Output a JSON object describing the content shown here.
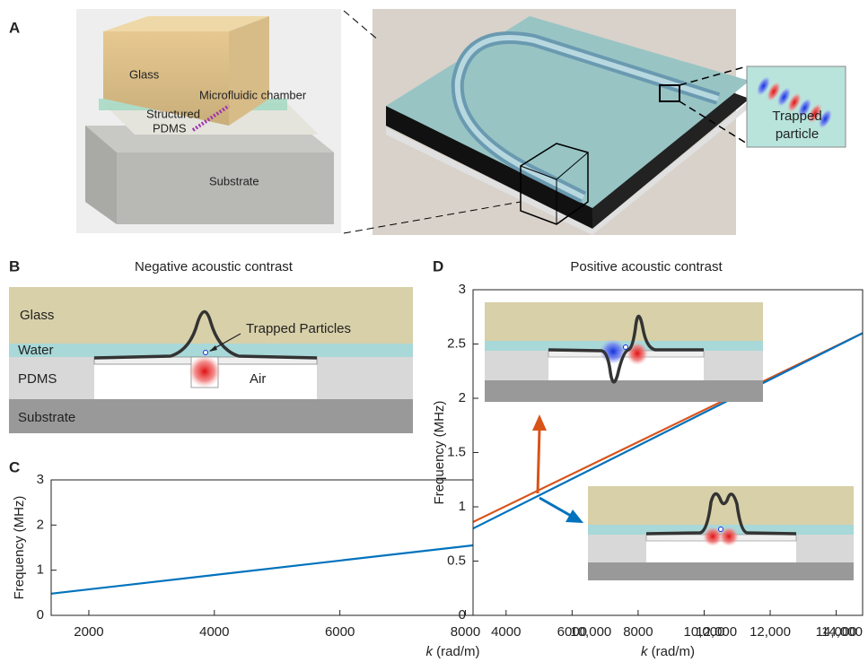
{
  "panel_labels": [
    "A",
    "B",
    "C",
    "D"
  ],
  "panel_a": {
    "glass": "Glass",
    "chamber": "Microfluidic chamber",
    "pdms_lines": [
      "Structured",
      "PDMS"
    ],
    "substrate": "Substrate",
    "particle_lines": [
      "Trapped",
      "particle"
    ]
  },
  "panel_b": {
    "title": "Negative acoustic contrast",
    "glass": "Glass",
    "water": "Water",
    "pdms": "PDMS",
    "substrate": "Substrate",
    "air": "Air",
    "particles": "Trapped Particles"
  },
  "panel_d_title": "Positive acoustic contrast",
  "chart_data": [
    {
      "type": "line",
      "y_label": "Frequency (MHz)",
      "x_label_symbol": "k",
      "x_label_unit": " (rad/m)",
      "x": [
        1400,
        14200
      ],
      "series": [
        {
          "color": "#0072bd",
          "values": [
            0.48,
            2.52
          ]
        }
      ],
      "xlim": [
        1400,
        14200
      ],
      "ylim": [
        0,
        3
      ],
      "xticks": [
        2000,
        4000,
        6000,
        8000,
        {
          "value": 10000,
          "label": "10,000"
        },
        {
          "value": 12000,
          "label": "12,000"
        },
        {
          "value": 14000,
          "label": "14,000"
        }
      ],
      "yticks": [
        0,
        1,
        2,
        3
      ]
    },
    {
      "type": "line",
      "y_label": "Frequency (MHz)",
      "x_label_symbol": "k",
      "x_label_unit": " (rad/m)",
      "x": [
        3000,
        14800
      ],
      "series": [
        {
          "color": "#d95319",
          "values": [
            0.86,
            2.6
          ]
        },
        {
          "color": "#0072bd",
          "values": [
            0.8,
            2.6
          ]
        }
      ],
      "xlim": [
        3000,
        14800
      ],
      "ylim": [
        0,
        3
      ],
      "xticks": [
        4000,
        6000,
        8000,
        {
          "value": 10000,
          "label": "10,000"
        },
        {
          "value": 12000,
          "label": "12,000"
        },
        {
          "value": 14000,
          "label": "14,000"
        }
      ],
      "yticks": [
        0,
        0.5,
        1,
        1.5,
        2,
        2.5,
        3
      ]
    }
  ]
}
